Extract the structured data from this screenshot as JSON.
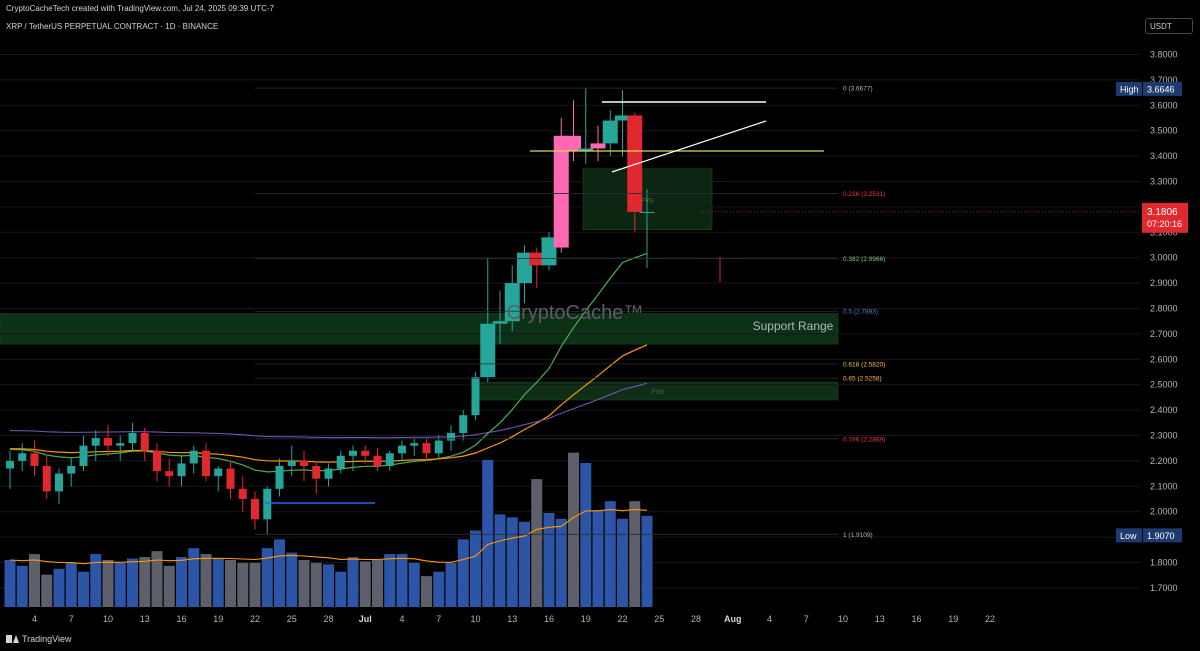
{
  "header": {
    "creator": "CryptoCacheTech created with TradingView.com, Jul 24, 2025 09:39 UTC-7",
    "symbol": "XRP / TetherUS PERPETUAL CONTRACT · 1D · BINANCE"
  },
  "currency_label": "USDT",
  "brand": "TradingView",
  "watermark": "CryptoCache™",
  "support_label": "Support Range",
  "colors": {
    "up": "#26a69a",
    "down": "#e0282e",
    "bull_highlight": "#ff69b4",
    "background": "#000000",
    "volume_up": "#2c55a8",
    "volume_down": "#5d606b",
    "ema_green": "#4caf50",
    "ema_orange": "#ff9800",
    "ema_purple": "#7e57c2",
    "fib_level": "#f2f2f2",
    "support_zone": "#0f3a1a"
  },
  "chart_data": {
    "type": "candlestick",
    "title": "XRP / TetherUS PERPETUAL CONTRACT · 1D · BINANCE",
    "interval": "1D",
    "price_axis": {
      "ticks": [
        "3.8000",
        "3.7000",
        "3.6000",
        "3.5000",
        "3.4000",
        "3.3000",
        "3.2000",
        "3.1000",
        "3.0000",
        "2.9000",
        "2.8000",
        "2.7000",
        "2.6000",
        "2.5000",
        "2.4000",
        "2.3000",
        "2.2000",
        "2.1000",
        "2.0000",
        "1.9000",
        "1.8000",
        "1.7000"
      ],
      "range": [
        1.62,
        3.86
      ]
    },
    "time_axis": {
      "ticks": [
        "4",
        "7",
        "10",
        "13",
        "16",
        "19",
        "22",
        "25",
        "28",
        "Jul",
        "4",
        "7",
        "10",
        "13",
        "16",
        "19",
        "22",
        "25",
        "28",
        "Aug",
        "4",
        "7",
        "10",
        "13",
        "16",
        "19",
        "22"
      ]
    },
    "current_price": {
      "value": 3.1806,
      "label": "3.1806",
      "countdown": "07:20:16"
    },
    "high": {
      "label": "High",
      "value": "3.6646"
    },
    "low": {
      "label": "Low",
      "value": "1.9070"
    },
    "fib_levels": [
      {
        "ratio": 0,
        "price": 3.6677,
        "label": "0 (3.6677)",
        "color": "#b2b5be"
      },
      {
        "ratio": 0.236,
        "price": 3.2531,
        "label": "0.236 (3.2531)",
        "color": "#f23645"
      },
      {
        "ratio": 0.382,
        "price": 2.9966,
        "label": "0.382 (2.9966)",
        "color": "#81c784"
      },
      {
        "ratio": 0.5,
        "price": 2.7893,
        "label": "0.5 (2.7893)",
        "color": "#5b7bd5"
      },
      {
        "ratio": 0.618,
        "price": 2.582,
        "label": "0.618 (2.5820)",
        "color": "#ffb74d"
      },
      {
        "ratio": 0.65,
        "price": 2.5258,
        "label": "0.65 (2.5258)",
        "color": "#ffb74d"
      },
      {
        "ratio": 0.786,
        "price": 2.2869,
        "label": "0.786 (2.2869)",
        "color": "#f23645"
      },
      {
        "ratio": 1,
        "price": 1.9109,
        "label": "1 (1.9109)",
        "color": "#b2b5be"
      }
    ],
    "zones": [
      {
        "name": "support-range",
        "from": 2.66,
        "to": 2.78
      },
      {
        "name": "fvg-lower",
        "from": 2.44,
        "to": 2.51,
        "label": "FVG"
      },
      {
        "name": "fvg-upper",
        "from": 3.11,
        "to": 3.35,
        "label": "FVG"
      }
    ],
    "candles": [
      {
        "o": 2.17,
        "h": 2.24,
        "l": 2.09,
        "c": 2.2
      },
      {
        "o": 2.2,
        "h": 2.27,
        "l": 2.16,
        "c": 2.23
      },
      {
        "o": 2.23,
        "h": 2.28,
        "l": 2.14,
        "c": 2.18
      },
      {
        "o": 2.18,
        "h": 2.22,
        "l": 2.05,
        "c": 2.08
      },
      {
        "o": 2.08,
        "h": 2.17,
        "l": 2.03,
        "c": 2.15
      },
      {
        "o": 2.15,
        "h": 2.21,
        "l": 2.1,
        "c": 2.18
      },
      {
        "o": 2.18,
        "h": 2.3,
        "l": 2.16,
        "c": 2.26
      },
      {
        "o": 2.26,
        "h": 2.32,
        "l": 2.2,
        "c": 2.29
      },
      {
        "o": 2.29,
        "h": 2.34,
        "l": 2.22,
        "c": 2.26
      },
      {
        "o": 2.26,
        "h": 2.3,
        "l": 2.2,
        "c": 2.27
      },
      {
        "o": 2.27,
        "h": 2.35,
        "l": 2.24,
        "c": 2.31
      },
      {
        "o": 2.31,
        "h": 2.33,
        "l": 2.2,
        "c": 2.24
      },
      {
        "o": 2.24,
        "h": 2.27,
        "l": 2.12,
        "c": 2.16
      },
      {
        "o": 2.16,
        "h": 2.21,
        "l": 2.1,
        "c": 2.14
      },
      {
        "o": 2.14,
        "h": 2.22,
        "l": 2.1,
        "c": 2.19
      },
      {
        "o": 2.19,
        "h": 2.26,
        "l": 2.15,
        "c": 2.24
      },
      {
        "o": 2.24,
        "h": 2.27,
        "l": 2.12,
        "c": 2.14
      },
      {
        "o": 2.14,
        "h": 2.18,
        "l": 2.08,
        "c": 2.17
      },
      {
        "o": 2.17,
        "h": 2.2,
        "l": 2.05,
        "c": 2.09
      },
      {
        "o": 2.09,
        "h": 2.14,
        "l": 2.0,
        "c": 2.05
      },
      {
        "o": 2.05,
        "h": 2.08,
        "l": 1.93,
        "c": 1.97
      },
      {
        "o": 1.97,
        "h": 2.1,
        "l": 1.91,
        "c": 2.09
      },
      {
        "o": 2.09,
        "h": 2.21,
        "l": 2.06,
        "c": 2.18
      },
      {
        "o": 2.18,
        "h": 2.26,
        "l": 2.14,
        "c": 2.2
      },
      {
        "o": 2.2,
        "h": 2.24,
        "l": 2.12,
        "c": 2.18
      },
      {
        "o": 2.18,
        "h": 2.2,
        "l": 2.07,
        "c": 2.13
      },
      {
        "o": 2.13,
        "h": 2.19,
        "l": 2.1,
        "c": 2.17
      },
      {
        "o": 2.17,
        "h": 2.24,
        "l": 2.15,
        "c": 2.22
      },
      {
        "o": 2.22,
        "h": 2.26,
        "l": 2.16,
        "c": 2.24
      },
      {
        "o": 2.24,
        "h": 2.26,
        "l": 2.19,
        "c": 2.22
      },
      {
        "o": 2.22,
        "h": 2.25,
        "l": 2.16,
        "c": 2.18
      },
      {
        "o": 2.18,
        "h": 2.24,
        "l": 2.16,
        "c": 2.23
      },
      {
        "o": 2.23,
        "h": 2.28,
        "l": 2.2,
        "c": 2.26
      },
      {
        "o": 2.26,
        "h": 2.29,
        "l": 2.22,
        "c": 2.27
      },
      {
        "o": 2.27,
        "h": 2.29,
        "l": 2.2,
        "c": 2.23
      },
      {
        "o": 2.23,
        "h": 2.3,
        "l": 2.21,
        "c": 2.28
      },
      {
        "o": 2.28,
        "h": 2.34,
        "l": 2.24,
        "c": 2.31
      },
      {
        "o": 2.31,
        "h": 2.4,
        "l": 2.28,
        "c": 2.38
      },
      {
        "o": 2.38,
        "h": 2.55,
        "l": 2.36,
        "c": 2.53
      },
      {
        "o": 2.53,
        "h": 3.0,
        "l": 2.51,
        "c": 2.74
      },
      {
        "o": 2.74,
        "h": 2.87,
        "l": 2.66,
        "c": 2.75
      },
      {
        "o": 2.75,
        "h": 2.97,
        "l": 2.71,
        "c": 2.9
      },
      {
        "o": 2.9,
        "h": 3.05,
        "l": 2.82,
        "c": 3.02
      },
      {
        "o": 3.02,
        "h": 3.04,
        "l": 2.88,
        "c": 2.97
      },
      {
        "o": 2.97,
        "h": 3.1,
        "l": 2.95,
        "c": 3.08
      },
      {
        "o": 3.04,
        "h": 3.55,
        "l": 3.02,
        "c": 3.48
      },
      {
        "o": 3.48,
        "h": 3.62,
        "l": 3.38,
        "c": 3.42
      },
      {
        "o": 3.42,
        "h": 3.67,
        "l": 3.37,
        "c": 3.43
      },
      {
        "o": 3.43,
        "h": 3.52,
        "l": 3.38,
        "c": 3.45
      },
      {
        "o": 3.45,
        "h": 3.58,
        "l": 3.4,
        "c": 3.54
      },
      {
        "o": 3.54,
        "h": 3.66,
        "l": 3.4,
        "c": 3.56
      },
      {
        "o": 3.56,
        "h": 3.57,
        "l": 3.1,
        "c": 3.18
      },
      {
        "o": 3.18,
        "h": 3.27,
        "l": 2.96,
        "c": 3.18
      }
    ],
    "volume": [
      0.32,
      0.28,
      0.36,
      0.22,
      0.26,
      0.3,
      0.24,
      0.36,
      0.32,
      0.3,
      0.33,
      0.34,
      0.38,
      0.28,
      0.34,
      0.4,
      0.36,
      0.33,
      0.32,
      0.3,
      0.3,
      0.4,
      0.46,
      0.37,
      0.32,
      0.3,
      0.29,
      0.24,
      0.34,
      0.31,
      0.32,
      0.36,
      0.36,
      0.3,
      0.21,
      0.24,
      0.3,
      0.46,
      0.52,
      1.0,
      0.63,
      0.61,
      0.58,
      0.87,
      0.64,
      0.6,
      1.05,
      0.98,
      0.66,
      0.72,
      0.6,
      0.72,
      0.62
    ],
    "volume_ma_end": 0.84,
    "overlays": [
      "EMA green",
      "EMA orange",
      "EMA purple",
      "Volume MA"
    ]
  }
}
